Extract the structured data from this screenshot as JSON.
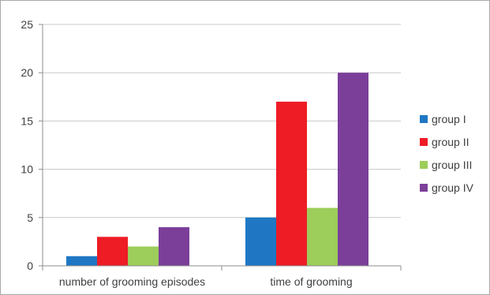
{
  "chart_data": {
    "type": "bar",
    "title": "",
    "xlabel": "",
    "ylabel": "",
    "categories": [
      "number of grooming episodes",
      "time of grooming"
    ],
    "series": [
      {
        "name": "group I",
        "color": "#1f77c4",
        "values": [
          1,
          5
        ]
      },
      {
        "name": "group II",
        "color": "#ee1c25",
        "values": [
          3,
          17
        ]
      },
      {
        "name": "group III",
        "color": "#9dcd5a",
        "values": [
          2,
          6
        ]
      },
      {
        "name": "group IV",
        "color": "#7b3f9a",
        "values": [
          4,
          20
        ]
      }
    ],
    "ylim": [
      0,
      25
    ],
    "yticks": [
      0,
      5,
      10,
      15,
      20,
      25
    ],
    "grid": true,
    "legend_position": "right"
  }
}
